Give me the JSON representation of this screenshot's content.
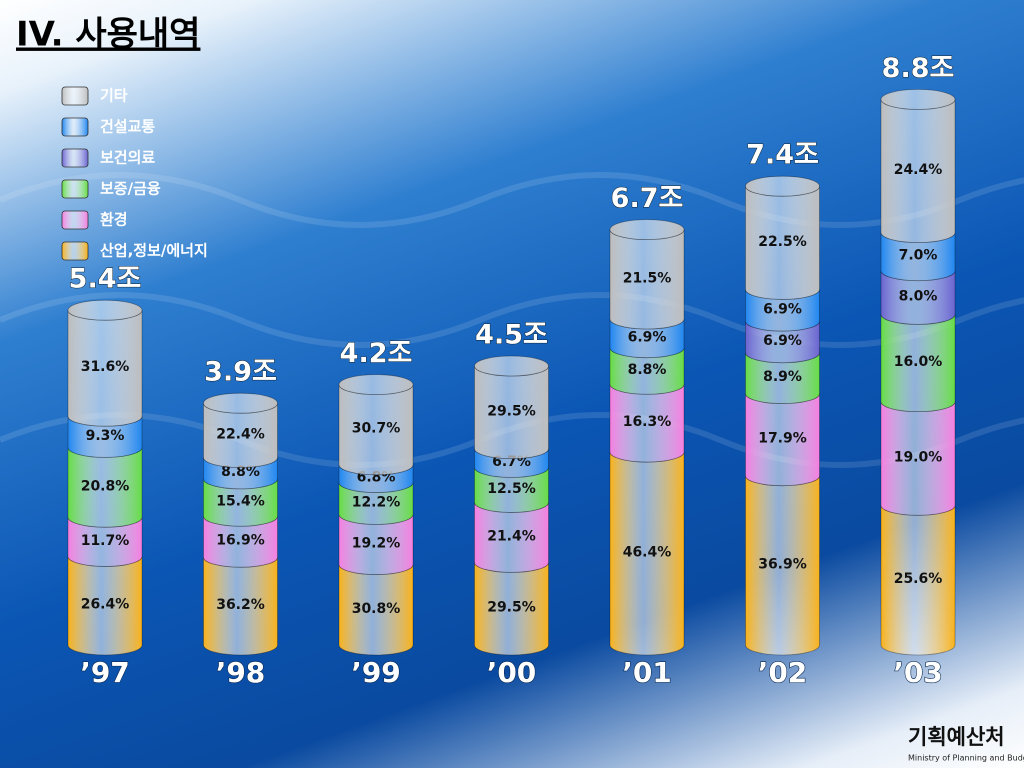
{
  "chart_data": {
    "type": "stacked-cylinder",
    "title": "IV. 사용내역",
    "logo": "기획예산처",
    "logo_subtitle": "Ministry of Planning and Budget",
    "categories": [
      "’97",
      "’98",
      "’99",
      "’00",
      "’01",
      "’02",
      "’03"
    ],
    "totals": {
      "values": [
        5.4,
        3.9,
        4.2,
        4.5,
        6.7,
        7.4,
        8.8
      ],
      "value_labels": [
        "5.4조",
        "3.9조",
        "4.2조",
        "4.5조",
        "6.7조",
        "7.4조",
        "8.8조"
      ]
    },
    "series": [
      {
        "name": "산업,정보/에너지",
        "color": "#f9b21a",
        "values": [
          26.4,
          36.2,
          30.8,
          29.5,
          46.4,
          36.9,
          25.6
        ],
        "value_labels": [
          "26.4%",
          "36.2%",
          "30.8%",
          "29.5%",
          "46.4%",
          "36.9%",
          "25.6%"
        ]
      },
      {
        "name": "환경",
        "color": "#f57fe0",
        "values": [
          11.7,
          16.9,
          19.2,
          21.4,
          16.3,
          17.9,
          19.0
        ],
        "value_labels": [
          "11.7%",
          "16.9%",
          "19.2%",
          "21.4%",
          "16.3%",
          "17.9%",
          "19.0%"
        ]
      },
      {
        "name": "보증/금융",
        "color": "#66dd44",
        "values": [
          20.8,
          15.4,
          12.2,
          12.5,
          8.8,
          8.9,
          16.0
        ],
        "value_labels": [
          "20.8%",
          "15.4%",
          "12.2%",
          "12.5%",
          "8.8%",
          "8.9%",
          "16.0%"
        ]
      },
      {
        "name": "보건의료",
        "color": "#6a63d0",
        "values": [
          null,
          null,
          null,
          null,
          null,
          6.9,
          8.0
        ],
        "value_labels": [
          null,
          null,
          null,
          null,
          null,
          "6.9%",
          "8.0%"
        ]
      },
      {
        "name": "건설교통",
        "color": "#1f86f0",
        "values": [
          9.3,
          8.8,
          6.8,
          6.7,
          6.9,
          6.9,
          7.0
        ],
        "value_labels": [
          "9.3%",
          "8.8%",
          "6.8%",
          "6.7%",
          "6.9%",
          "6.9%",
          "7.0%"
        ]
      },
      {
        "name": "기타",
        "color": "#bdbdbd",
        "values": [
          31.6,
          22.4,
          30.7,
          29.5,
          21.5,
          22.5,
          24.4
        ],
        "value_labels": [
          "31.6%",
          "22.4%",
          "30.7%",
          "29.5%",
          "21.5%",
          "22.5%",
          "24.4%"
        ]
      }
    ]
  }
}
